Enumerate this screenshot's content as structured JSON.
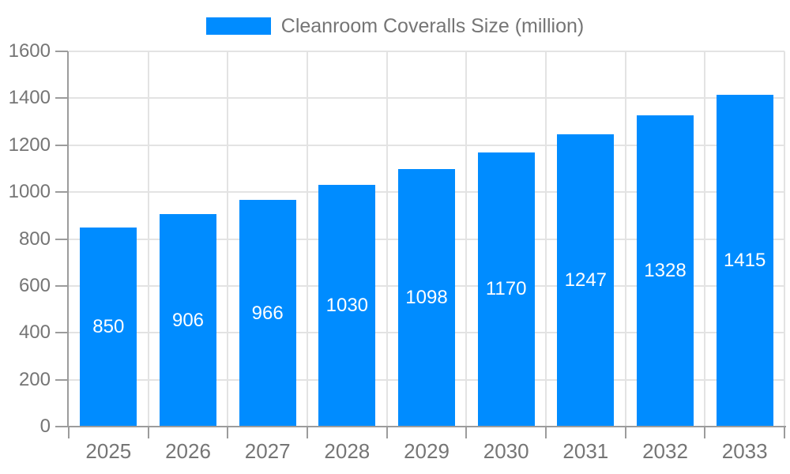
{
  "chart_data": {
    "type": "bar",
    "title": "Cleanroom Coveralls Size (million)",
    "categories": [
      "2025",
      "2026",
      "2027",
      "2028",
      "2029",
      "2030",
      "2031",
      "2032",
      "2033"
    ],
    "values": [
      850,
      906,
      966,
      1030,
      1098,
      1170,
      1247,
      1328,
      1415
    ],
    "series": [
      {
        "name": "Cleanroom Coveralls Size (million)",
        "values": [
          850,
          906,
          966,
          1030,
          1098,
          1170,
          1247,
          1328,
          1415
        ]
      }
    ],
    "xlabel": "",
    "ylabel": "",
    "ylim": [
      0,
      1600
    ],
    "yticks": [
      0,
      200,
      400,
      600,
      800,
      1000,
      1200,
      1400,
      1600
    ],
    "grid": true,
    "legend_position": "top-center",
    "value_label_position": "inside-center"
  },
  "colors": {
    "bar": "#008CFF",
    "grid_line": "#E3E3E3",
    "axis_line": "#9C9C9C",
    "tick_label": "#757575",
    "value_label": "#FFFFFF",
    "background": "#FFFFFF"
  }
}
